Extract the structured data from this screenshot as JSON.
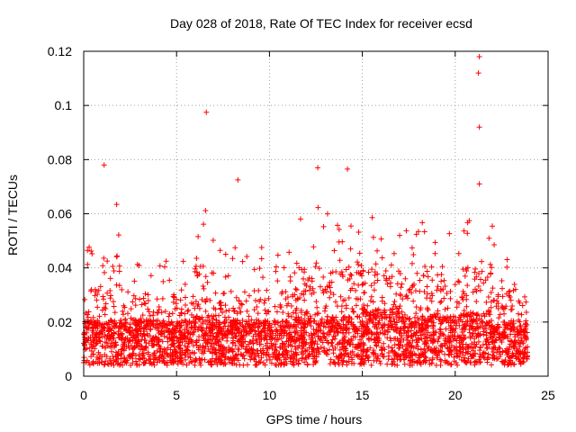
{
  "chart_data": {
    "type": "scatter",
    "title": "Day 028 of 2018, Rate Of TEC Index for receiver ecsd",
    "xlabel": "GPS time / hours",
    "ylabel": "ROTI / TECUs",
    "xlim": [
      0,
      25
    ],
    "ylim": [
      0,
      0.12
    ],
    "x_ticks": [
      0,
      5,
      10,
      15,
      20,
      25
    ],
    "y_ticks": [
      0,
      0.02,
      0.04,
      0.06,
      0.08,
      0.1,
      0.12
    ],
    "x_tick_labels": [
      "0",
      "5",
      "10",
      "15",
      "20",
      "25"
    ],
    "y_tick_labels": [
      "0",
      "0.02",
      "0.04",
      "0.06",
      "0.08",
      "0.1",
      "0.12"
    ],
    "grid": true,
    "marker": "+",
    "marker_color": "#ff0000",
    "series": [
      {
        "name": "ROTI",
        "notable_points": [
          {
            "x": 1.1,
            "y": 0.078
          },
          {
            "x": 6.6,
            "y": 0.0975
          },
          {
            "x": 8.3,
            "y": 0.0725
          },
          {
            "x": 12.6,
            "y": 0.077
          },
          {
            "x": 14.2,
            "y": 0.0765
          },
          {
            "x": 21.3,
            "y": 0.118
          },
          {
            "x": 21.25,
            "y": 0.112
          },
          {
            "x": 21.3,
            "y": 0.092
          },
          {
            "x": 21.3,
            "y": 0.071
          }
        ],
        "envelope": [
          {
            "hours": [
              0,
              1
            ],
            "baseline": 0.012,
            "peak": 0.05
          },
          {
            "hours": [
              1,
              2
            ],
            "baseline": 0.012,
            "peak": 0.072
          },
          {
            "hours": [
              2,
              6
            ],
            "baseline": 0.012,
            "peak": 0.045
          },
          {
            "hours": [
              6,
              7
            ],
            "baseline": 0.013,
            "peak": 0.065
          },
          {
            "hours": [
              7,
              11
            ],
            "baseline": 0.012,
            "peak": 0.048
          },
          {
            "hours": [
              11,
              13
            ],
            "baseline": 0.013,
            "peak": 0.063
          },
          {
            "hours": [
              13,
              15
            ],
            "baseline": 0.013,
            "peak": 0.06
          },
          {
            "hours": [
              15,
              17
            ],
            "baseline": 0.015,
            "peak": 0.06
          },
          {
            "hours": [
              17,
              20
            ],
            "baseline": 0.013,
            "peak": 0.06
          },
          {
            "hours": [
              20,
              22
            ],
            "baseline": 0.014,
            "peak": 0.064
          },
          {
            "hours": [
              22,
              24
            ],
            "baseline": 0.012,
            "peak": 0.052
          }
        ]
      }
    ]
  }
}
